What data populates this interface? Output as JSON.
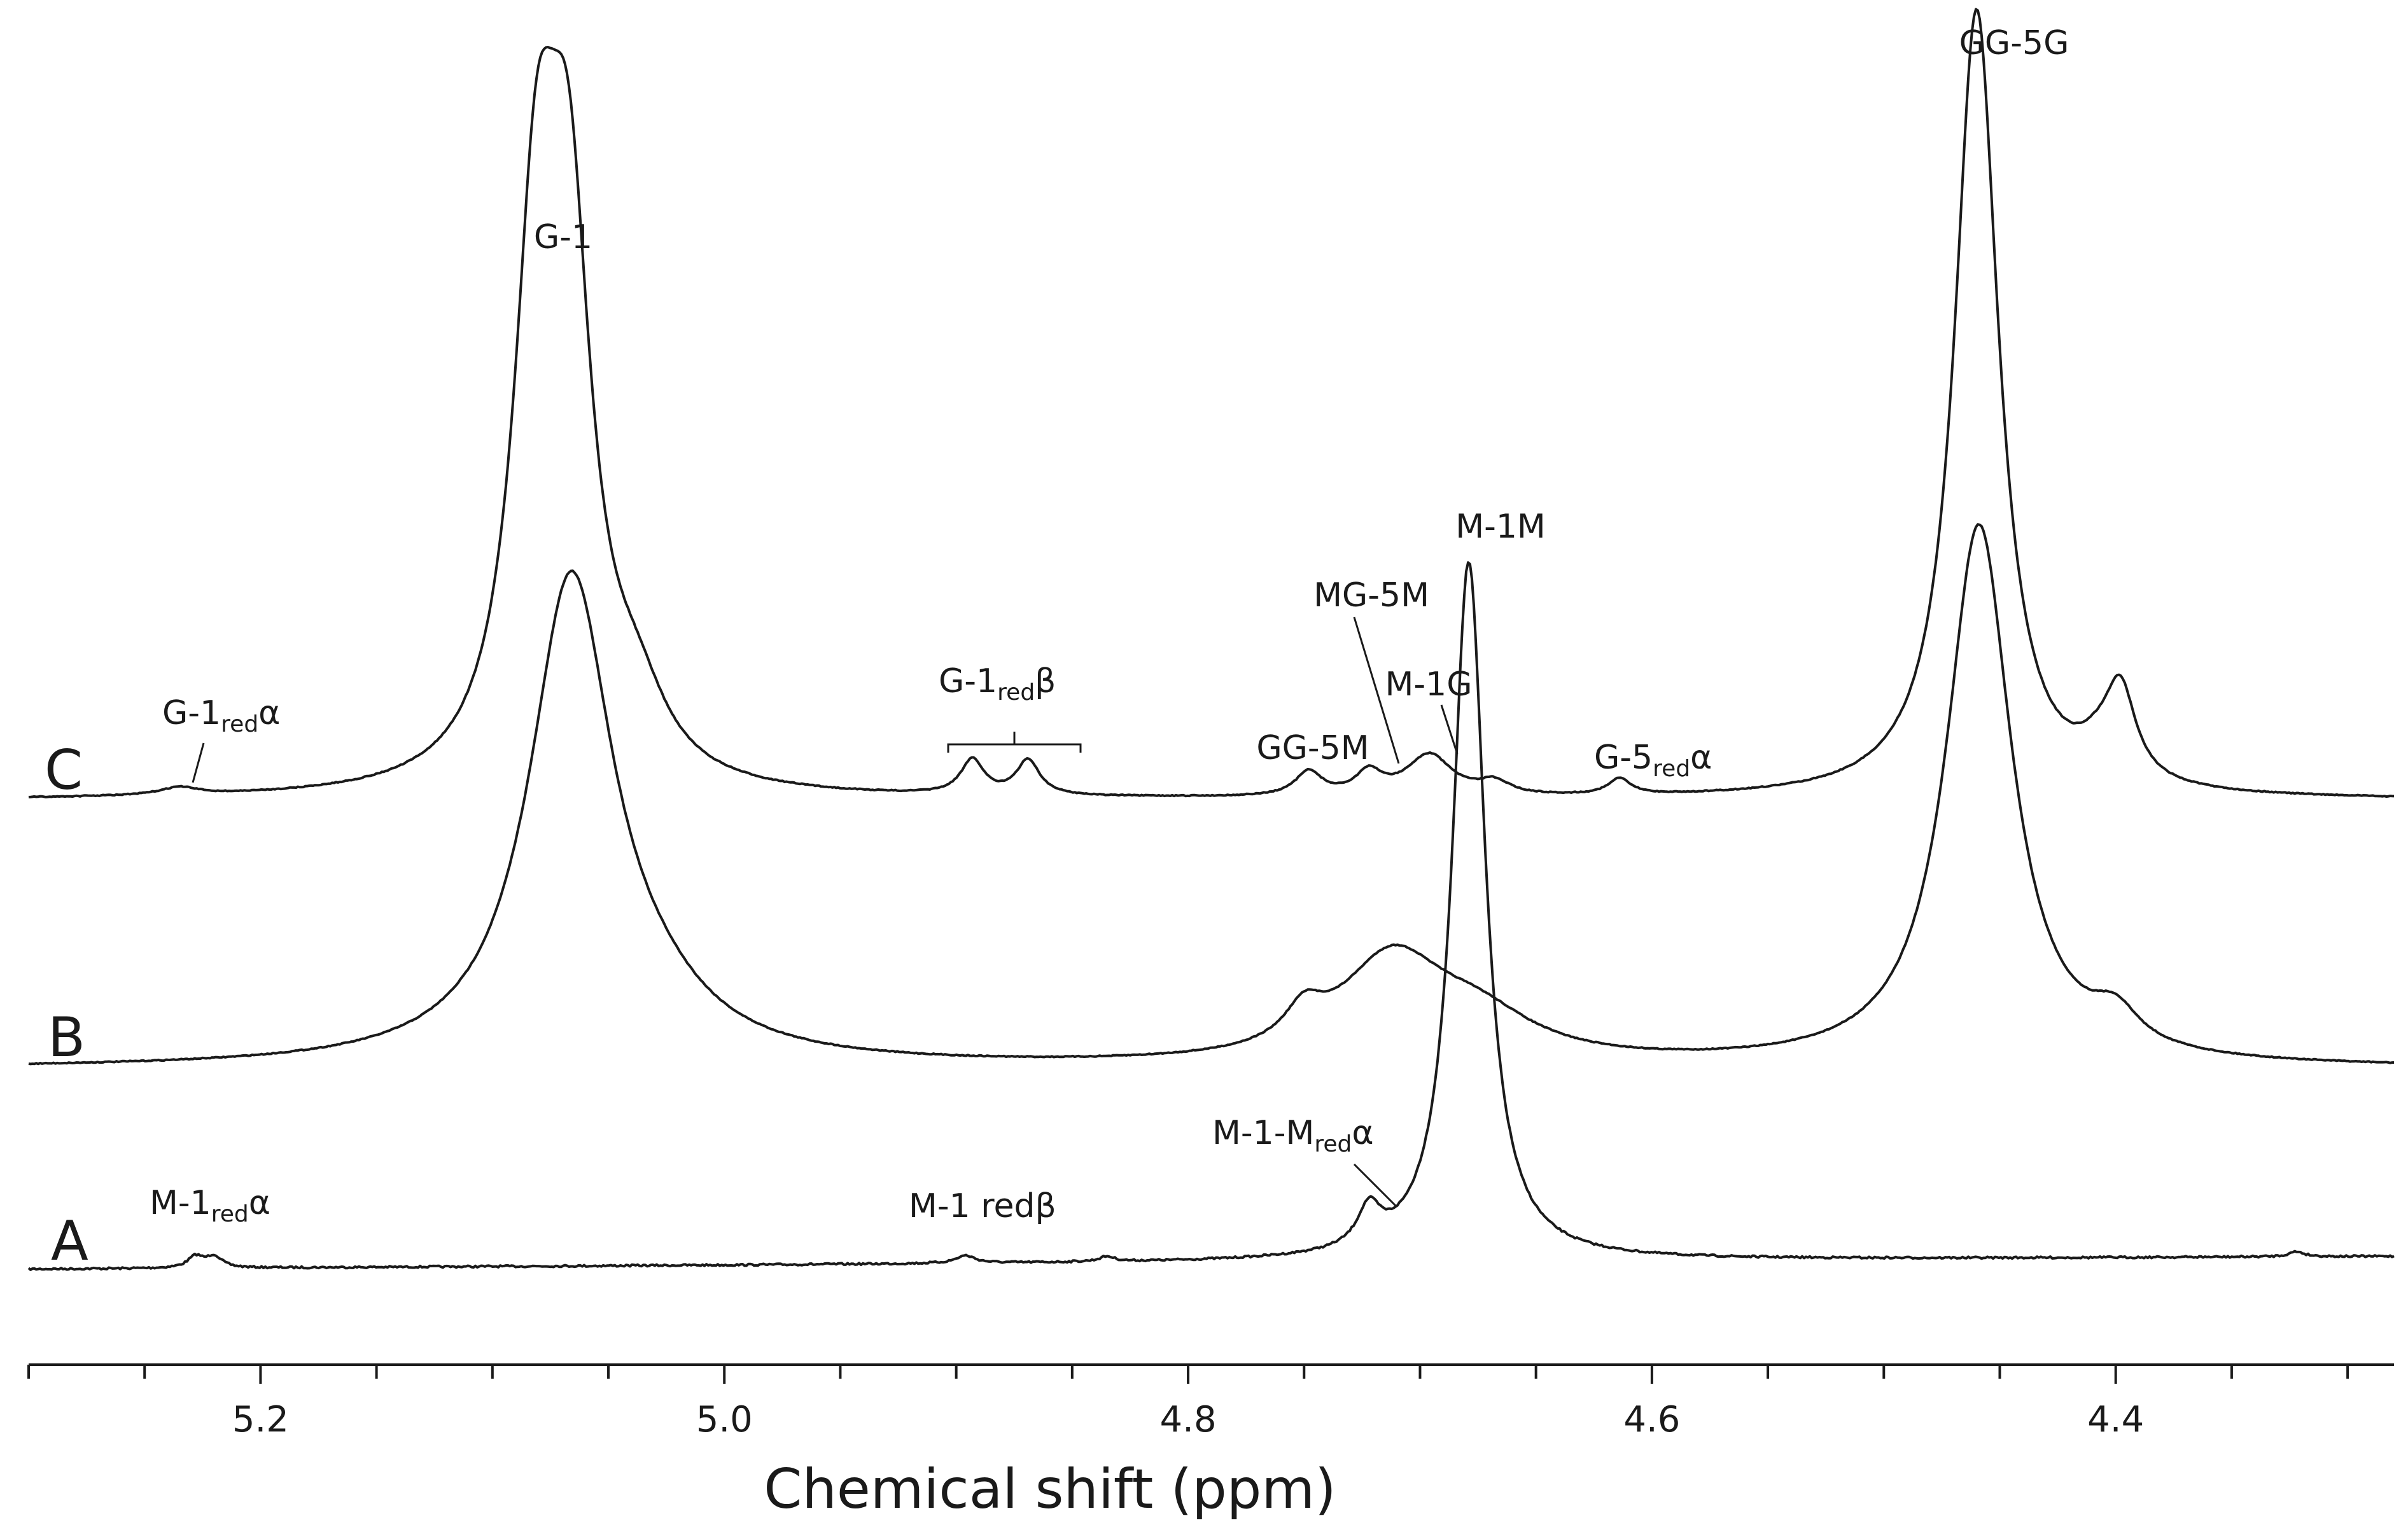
{
  "chart_data": {
    "type": "line",
    "title": "",
    "xlabel": "Chemical shift (ppm)",
    "ylabel": "",
    "x_reversed": true,
    "xlim": [
      5.3,
      4.28
    ],
    "x_major_ticks": [
      5.2,
      5.0,
      4.8,
      4.6,
      4.4
    ],
    "x_tick_labels": [
      "5.2",
      "5.0",
      "4.8",
      "4.6",
      "4.4"
    ],
    "x_minor_step": 0.05,
    "grid": false,
    "legend": "none",
    "series": [
      {
        "name": "A",
        "peaks": [
          {
            "x": 5.228,
            "h": 0.018,
            "w": 0.004
          },
          {
            "x": 5.22,
            "h": 0.018,
            "w": 0.004
          },
          {
            "x": 4.896,
            "h": 0.012,
            "w": 0.005
          },
          {
            "x": 4.835,
            "h": 0.008,
            "w": 0.004
          },
          {
            "x": 4.722,
            "h": 0.06,
            "w": 0.006
          },
          {
            "x": 4.679,
            "h": 1.1,
            "w": 0.0085
          },
          {
            "x": 4.322,
            "h": 0.008,
            "w": 0.004
          }
        ]
      },
      {
        "name": "B",
        "peaks": [
          {
            "x": 5.066,
            "h": 0.76,
            "w": 0.022
          },
          {
            "x": 5.03,
            "h": 0.05,
            "w": 0.03
          },
          {
            "x": 4.75,
            "h": 0.05,
            "w": 0.01
          },
          {
            "x": 4.712,
            "h": 0.16,
            "w": 0.028
          },
          {
            "x": 4.675,
            "h": 0.06,
            "w": 0.03
          },
          {
            "x": 4.459,
            "h": 0.85,
            "w": 0.017
          },
          {
            "x": 4.4,
            "h": 0.05,
            "w": 0.012
          }
        ]
      },
      {
        "name": "C",
        "peaks": [
          {
            "x": 5.235,
            "h": 0.012,
            "w": 0.01
          },
          {
            "x": 5.081,
            "h": 0.8,
            "w": 0.012
          },
          {
            "x": 5.067,
            "h": 0.76,
            "w": 0.012
          },
          {
            "x": 5.038,
            "h": 0.1,
            "w": 0.016
          },
          {
            "x": 4.893,
            "h": 0.055,
            "w": 0.006
          },
          {
            "x": 4.869,
            "h": 0.055,
            "w": 0.006
          },
          {
            "x": 4.748,
            "h": 0.038,
            "w": 0.007
          },
          {
            "x": 4.722,
            "h": 0.035,
            "w": 0.007
          },
          {
            "x": 4.696,
            "h": 0.065,
            "w": 0.012
          },
          {
            "x": 4.668,
            "h": 0.02,
            "w": 0.008
          },
          {
            "x": 4.614,
            "h": 0.025,
            "w": 0.006
          },
          {
            "x": 4.46,
            "h": 1.24,
            "w": 0.0115
          },
          {
            "x": 4.398,
            "h": 0.14,
            "w": 0.008
          },
          {
            "x": 4.408,
            "h": 0.03,
            "w": 0.01
          }
        ]
      }
    ],
    "annotations": [
      {
        "text": "GG-5G",
        "x": 4.46
      },
      {
        "text": "G-1",
        "x": 5.073
      },
      {
        "text": "M-1M",
        "x": 4.679
      },
      {
        "text": "MG-5M",
        "x": 4.755
      },
      {
        "text": "M-1G",
        "x": 4.705
      },
      {
        "text": "GG-5M",
        "x": 4.785
      },
      {
        "text": "G-5",
        "sub": "red",
        "suffix": "α",
        "x": 4.6
      },
      {
        "text": "G-1",
        "sub": "red",
        "suffix": "β",
        "x": 4.882
      },
      {
        "text": "G-1",
        "sub": "red",
        "suffix": "α",
        "x": 5.21
      },
      {
        "text": "M-1-M",
        "sub": "red",
        "suffix": "α",
        "x": 4.76
      },
      {
        "text": "M-1",
        "sub": "red",
        "suffix": "α",
        "x": 5.22
      },
      {
        "text": "M-1 redβ",
        "x": 4.895
      }
    ]
  }
}
